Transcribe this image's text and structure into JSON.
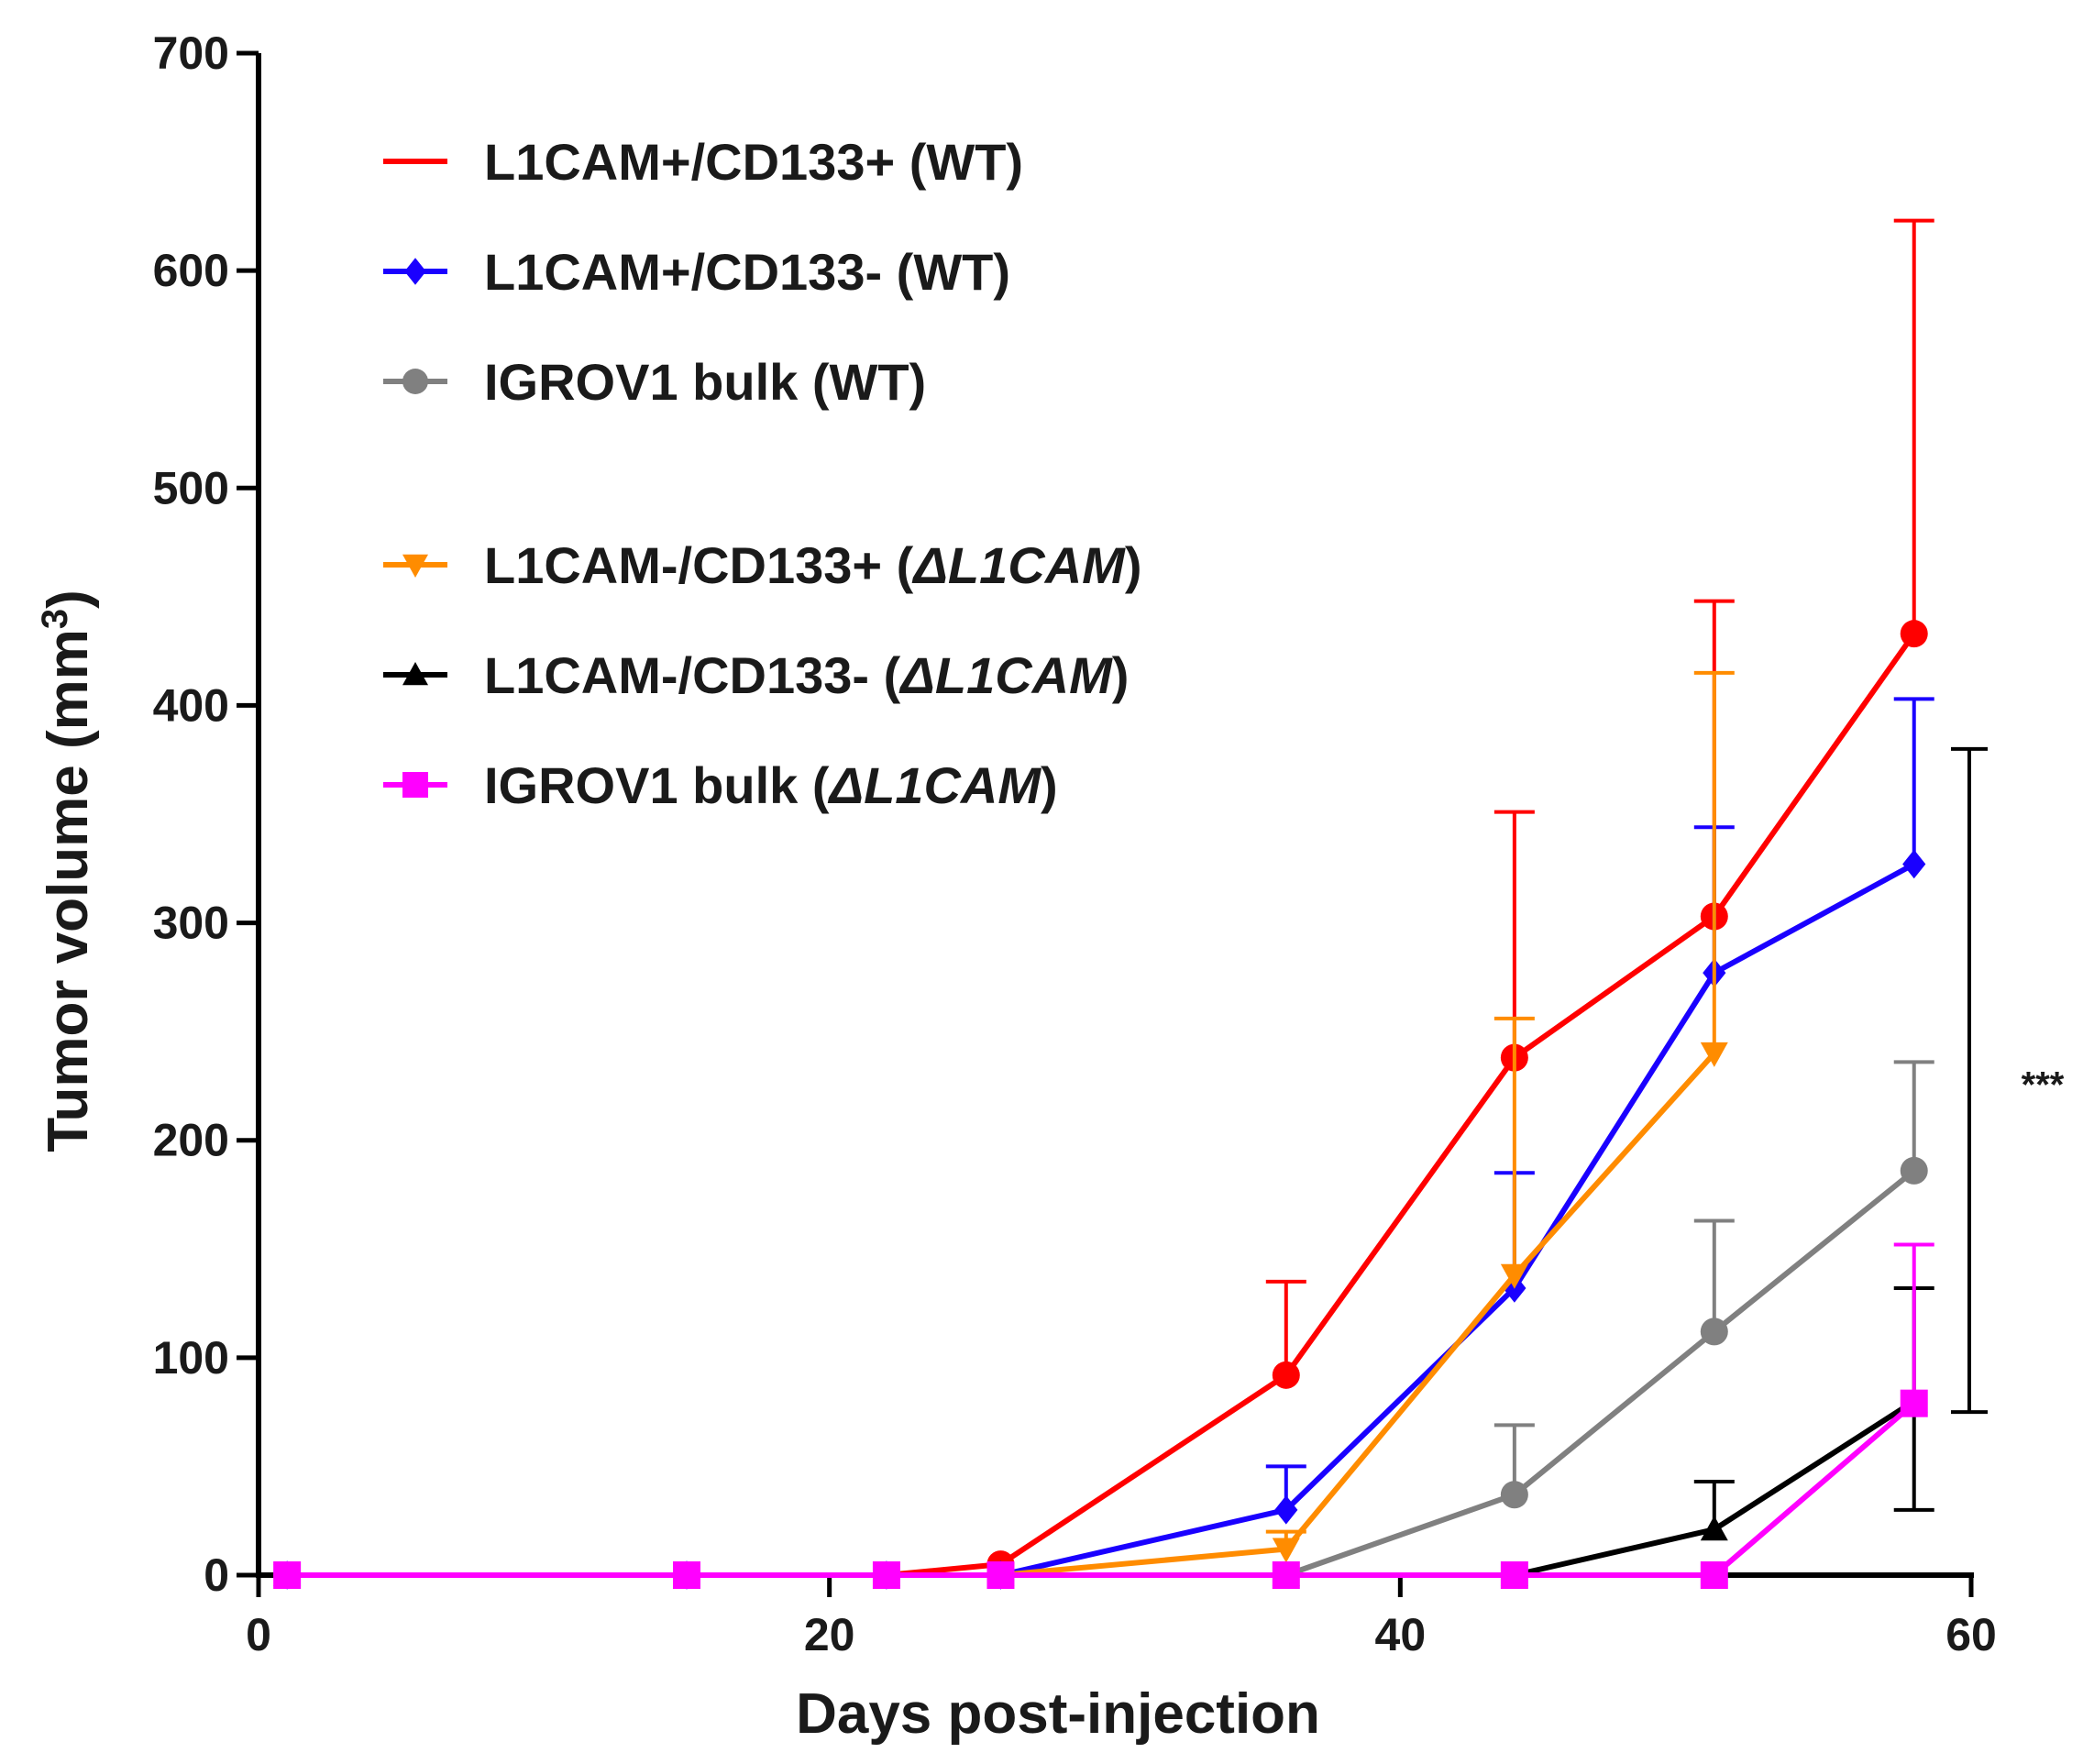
{
  "chart_data": {
    "type": "line",
    "xlabel": "Days post-injection",
    "ylabel_main": "Tumor volume (mm",
    "ylabel_sup": "3",
    "ylabel_close": ")",
    "xlim": [
      0,
      60
    ],
    "ylim": [
      0,
      700
    ],
    "xticks": [
      0,
      20,
      40,
      60
    ],
    "yticks": [
      0,
      100,
      200,
      300,
      400,
      500,
      600,
      700
    ],
    "grid": false,
    "legend_position": "top-left",
    "series": [
      {
        "id": "l1cam-cd133pos-wt",
        "label_main": "L1CAM+/CD133+ (WT)",
        "label_italic": "",
        "label_tail": "",
        "color": "#ff0000",
        "marker": "circle",
        "x": [
          1,
          15,
          22,
          26,
          36,
          44,
          51,
          58
        ],
        "y": [
          0,
          0,
          0,
          5,
          92,
          238,
          303,
          433
        ],
        "err": [
          0,
          0,
          0,
          0,
          43,
          113,
          145,
          190
        ]
      },
      {
        "id": "l1cam-cd133neg-wt",
        "label_main": "L1CAM+/CD133- (WT)",
        "label_italic": "",
        "label_tail": "",
        "color": "#1a00ff",
        "marker": "diamond",
        "x": [
          1,
          15,
          22,
          26,
          36,
          44,
          51,
          58
        ],
        "y": [
          0,
          0,
          0,
          0,
          30,
          132,
          277,
          327
        ],
        "err": [
          0,
          0,
          0,
          0,
          20,
          53,
          67,
          76
        ]
      },
      {
        "id": "igrov1-bulk-wt",
        "label_main": "IGROV1 bulk (WT)",
        "label_italic": "",
        "label_tail": "",
        "color": "#808080",
        "marker": "circle",
        "x": [
          1,
          15,
          22,
          26,
          36,
          44,
          51,
          58
        ],
        "y": [
          0,
          0,
          0,
          0,
          0,
          37,
          112,
          186
        ],
        "err": [
          0,
          0,
          0,
          0,
          0,
          32,
          51,
          50
        ]
      },
      {
        "id": "l1cam-neg-cd133pos-delta",
        "label_main": "L1CAM-/CD133+ (",
        "label_italic": "ΔL1CAM",
        "label_tail": ")",
        "color": "#ff8c00",
        "marker": "triangle-down",
        "x": [
          1,
          15,
          22,
          26,
          36,
          44,
          51
        ],
        "y": [
          0,
          0,
          0,
          0,
          12,
          138,
          240
        ],
        "err": [
          0,
          0,
          0,
          0,
          8,
          118,
          175
        ]
      },
      {
        "id": "l1cam-neg-cd133neg-delta",
        "label_main": "L1CAM-/CD133- (",
        "label_italic": "ΔL1CAM",
        "label_tail": ")",
        "color": "#000000",
        "marker": "triangle-up",
        "x": [
          1,
          15,
          22,
          26,
          36,
          44,
          51,
          58
        ],
        "y": [
          0,
          0,
          0,
          0,
          0,
          0,
          21,
          80
        ],
        "err": [
          0,
          0,
          0,
          0,
          0,
          0,
          22,
          52
        ],
        "err_lower": [
          0,
          0,
          0,
          0,
          0,
          0,
          0,
          50
        ]
      },
      {
        "id": "igrov1-bulk-delta",
        "label_main": "IGROV1 bulk (",
        "label_italic": "ΔL1CAM",
        "label_tail": ")",
        "color": "#ff00ff",
        "marker": "square",
        "x": [
          1,
          15,
          22,
          26,
          36,
          44,
          51,
          58
        ],
        "y": [
          0,
          0,
          0,
          0,
          0,
          0,
          0,
          79
        ],
        "err": [
          0,
          0,
          0,
          0,
          0,
          0,
          0,
          73
        ]
      }
    ],
    "significance": {
      "label": "***",
      "x": 60,
      "y_range": [
        75,
        380
      ]
    }
  }
}
